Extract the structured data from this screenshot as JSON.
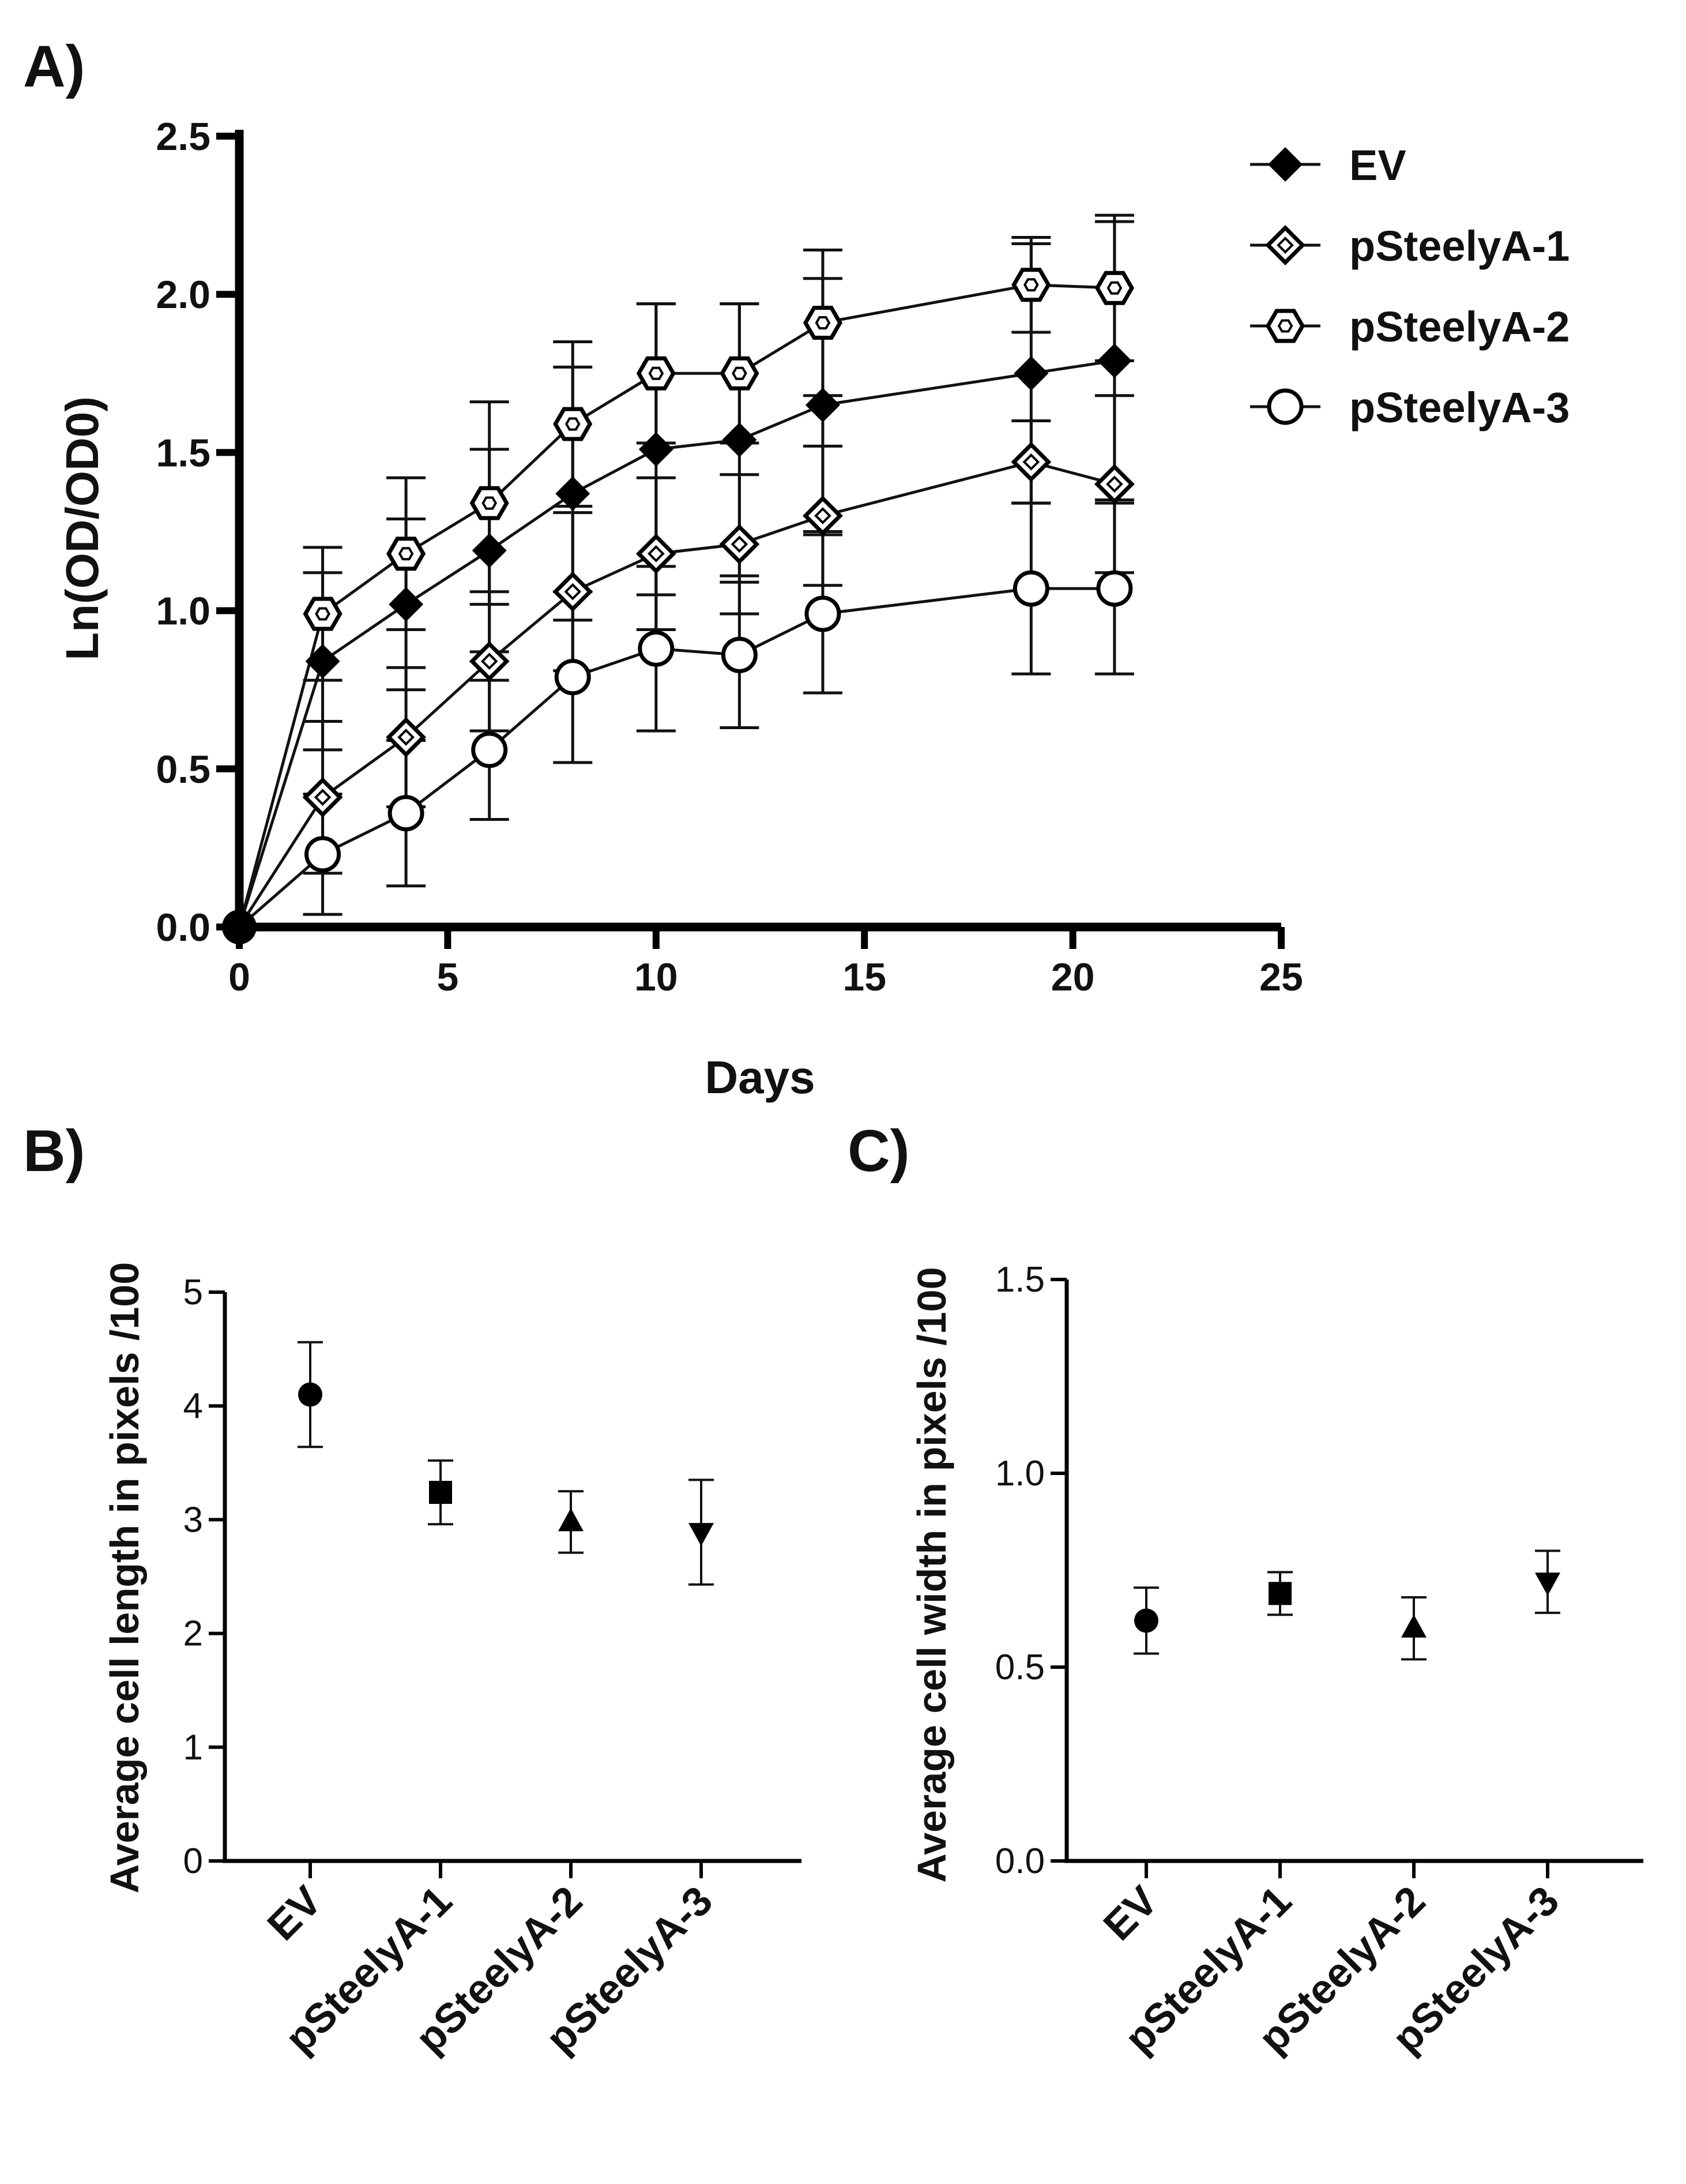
{
  "chart_data": [
    {
      "panel_label": "A)",
      "type": "line",
      "xlabel": "Days",
      "ylabel": "Ln(OD/OD0)",
      "xlim": [
        0,
        25
      ],
      "ylim": [
        0,
        2.5
      ],
      "x_ticks": [
        "0",
        "5",
        "10",
        "15",
        "20",
        "25"
      ],
      "y_ticks": [
        "0.0",
        "0.5",
        "1.0",
        "1.5",
        "2.0",
        "2.5"
      ],
      "legend_position": "top-right",
      "x": [
        0,
        2,
        4,
        6,
        8,
        10,
        12,
        14,
        19,
        21
      ],
      "series": [
        {
          "name": "EV",
          "marker": "filled-diamond",
          "values": [
            0,
            0.84,
            1.02,
            1.19,
            1.37,
            1.51,
            1.54,
            1.65,
            1.75,
            1.79
          ],
          "errors": [
            0,
            0.28,
            0.27,
            0.32,
            0.4,
            0.46,
            0.43,
            0.4,
            0.41,
            0.44
          ]
        },
        {
          "name": "pSteelyA-1",
          "marker": "open-diamond",
          "values": [
            0,
            0.41,
            0.6,
            0.84,
            1.06,
            1.18,
            1.21,
            1.3,
            1.47,
            1.4
          ],
          "errors": [
            0,
            0.24,
            0.22,
            0.22,
            0.25,
            0.24,
            0.22,
            0.22,
            0.13,
            0.28
          ]
        },
        {
          "name": "pSteelyA-2",
          "marker": "open-hexagon",
          "values": [
            0,
            0.99,
            1.18,
            1.34,
            1.59,
            1.75,
            1.75,
            1.91,
            2.03,
            2.02
          ],
          "errors": [
            0,
            0.21,
            0.24,
            0.32,
            0.26,
            0.22,
            0.22,
            0.23,
            0.15,
            0.23
          ]
        },
        {
          "name": "pSteelyA-3",
          "marker": "open-circle",
          "values": [
            0,
            0.23,
            0.36,
            0.56,
            0.79,
            0.88,
            0.86,
            0.99,
            1.07,
            1.07
          ],
          "errors": [
            0,
            0.19,
            0.23,
            0.22,
            0.27,
            0.26,
            0.23,
            0.25,
            0.27,
            0.27
          ]
        }
      ]
    },
    {
      "panel_label": "B)",
      "type": "scatter",
      "ylabel": "Average cell length in pixels /100",
      "ylim": [
        0,
        5
      ],
      "y_ticks": [
        "0",
        "1",
        "2",
        "3",
        "4",
        "5"
      ],
      "categories": [
        "EV",
        "pSteelyA-1",
        "pSteelyA-2",
        "pSteelyA-3"
      ],
      "markers": [
        "circle",
        "square",
        "triangle-up",
        "triangle-down"
      ],
      "values": [
        4.1,
        3.24,
        2.98,
        2.89
      ],
      "errors": [
        0.46,
        0.28,
        0.27,
        0.46
      ]
    },
    {
      "panel_label": "C)",
      "type": "scatter",
      "ylabel": "Average cell width in pixels /100",
      "ylim": [
        0,
        1.5
      ],
      "y_ticks": [
        "0.0",
        "0.5",
        "1.0",
        "1.5"
      ],
      "categories": [
        "EV",
        "pSteelyA-1",
        "pSteelyA-2",
        "pSteelyA-3"
      ],
      "markers": [
        "circle",
        "square",
        "triangle-up",
        "triangle-down"
      ],
      "values": [
        0.62,
        0.69,
        0.6,
        0.72
      ],
      "errors": [
        0.085,
        0.055,
        0.08,
        0.08
      ]
    }
  ]
}
